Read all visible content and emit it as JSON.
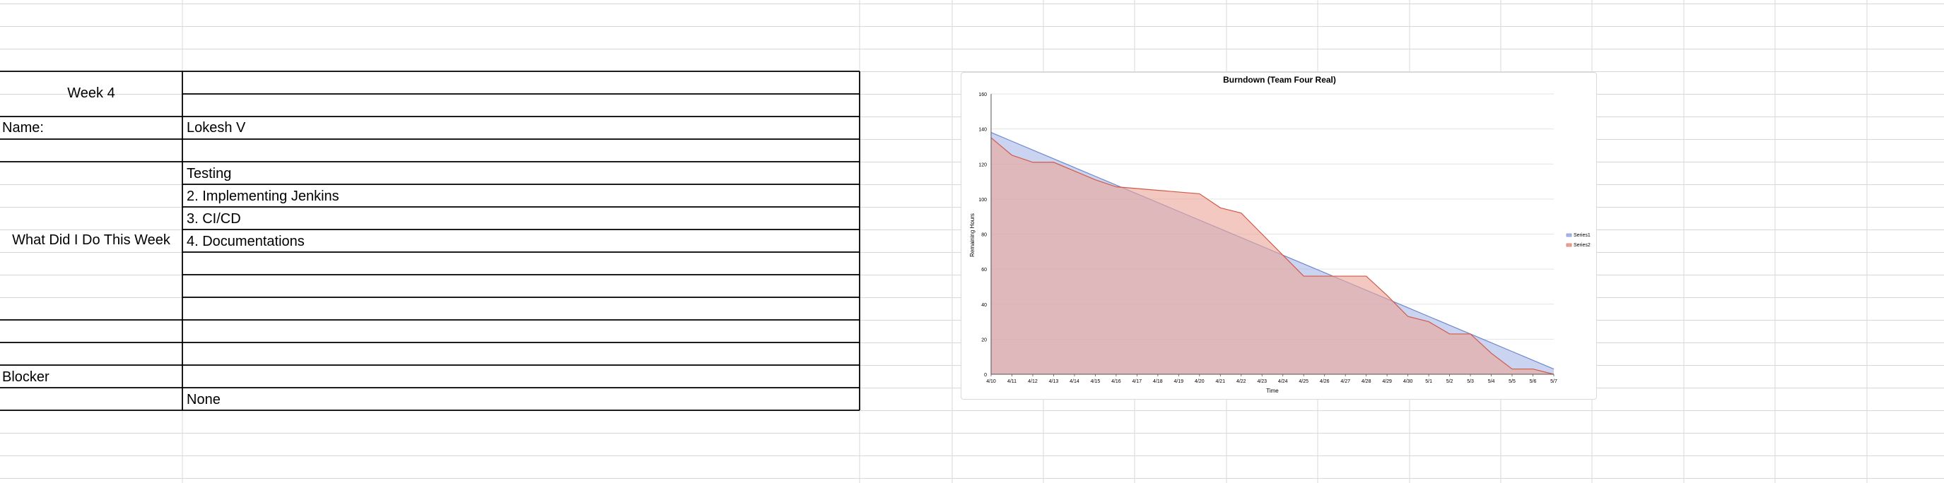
{
  "sheet": {
    "week_label": "Week 4",
    "name_label": "Name:",
    "name_value": "Lokesh V",
    "what_label": "What Did I Do This Week",
    "tasks": [
      "Testing",
      "2. Implementing Jenkins",
      "3. CI/CD",
      "4. Documentations"
    ],
    "blocker_label": "Blocker",
    "blocker_value": "None"
  },
  "chart_data": {
    "type": "area",
    "title": "Burndown (Team Four Real)",
    "xlabel": "Time",
    "ylabel": "Remaining Hours",
    "ylim": [
      0,
      160
    ],
    "yticks": [
      0,
      20,
      40,
      60,
      80,
      100,
      120,
      140,
      160
    ],
    "grid": true,
    "legend_position": "right",
    "categories": [
      "4/10",
      "4/11",
      "4/12",
      "4/13",
      "4/14",
      "4/15",
      "4/16",
      "4/17",
      "4/18",
      "4/19",
      "4/20",
      "4/21",
      "4/22",
      "4/23",
      "4/24",
      "4/25",
      "4/26",
      "4/27",
      "4/28",
      "4/29",
      "4/30",
      "5/1",
      "5/2",
      "5/3",
      "5/4",
      "5/5",
      "5/6",
      "5/7"
    ],
    "series": [
      {
        "name": "Series1",
        "color": "#a9b9e6",
        "stroke": "#6f88cf",
        "values": [
          138,
          133,
          128,
          123,
          118,
          113,
          108,
          103,
          98,
          93,
          88,
          83,
          78,
          73,
          68,
          63,
          58,
          53,
          48,
          43,
          38,
          33,
          28,
          23,
          18,
          13,
          8,
          3
        ]
      },
      {
        "name": "Series2",
        "color": "#eba79b",
        "stroke": "#d05a48",
        "values": [
          135,
          125,
          121,
          121,
          116,
          111,
          107,
          106,
          105,
          104,
          103,
          95,
          92,
          80,
          68,
          56,
          56,
          56,
          56,
          45,
          33,
          30,
          23,
          23,
          12,
          3,
          3,
          0
        ]
      }
    ]
  }
}
